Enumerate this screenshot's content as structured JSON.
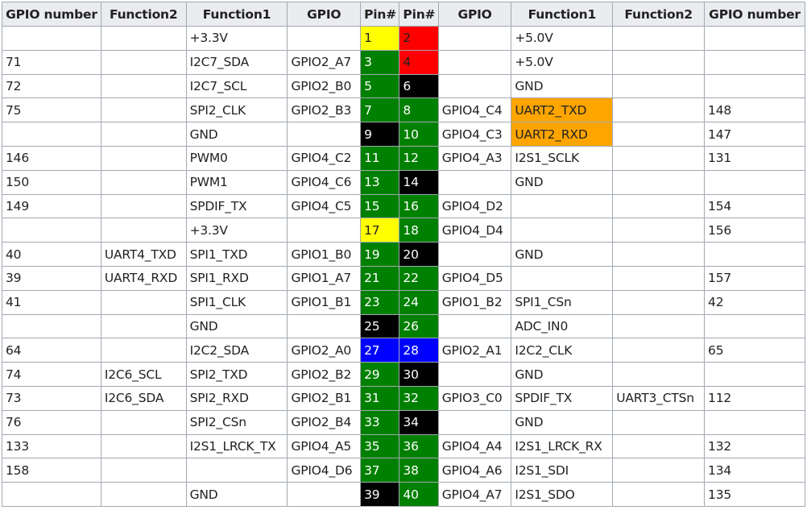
{
  "header": [
    "GPIO number",
    "Function2",
    "Function1",
    "GPIO",
    "Pin#",
    "Pin#",
    "GPIO",
    "Function1",
    "Function2",
    "GPIO number"
  ],
  "colors": {
    "power_3v3": "#ffff00",
    "power_5v": "#ff0000",
    "gnd": "#000000",
    "gpio": "#008000",
    "i2c_id": "#0000ff",
    "uart_highlight": "#ffa500"
  },
  "rows": [
    {
      "l_num": "",
      "l_f2": "",
      "l_f1": "+3.3V",
      "l_gpio": "",
      "l_pin": "1",
      "l_pin_color": "#ffff00",
      "r_pin": "2",
      "r_pin_color": "#ff0000",
      "r_gpio": "",
      "r_f1": "+5.0V",
      "r_f1_color": "",
      "r_f2": "",
      "r_num": ""
    },
    {
      "l_num": "71",
      "l_f2": "",
      "l_f1": "I2C7_SDA",
      "l_gpio": "GPIO2_A7",
      "l_pin": "3",
      "l_pin_color": "#008000",
      "r_pin": "4",
      "r_pin_color": "#ff0000",
      "r_gpio": "",
      "r_f1": "+5.0V",
      "r_f1_color": "",
      "r_f2": "",
      "r_num": ""
    },
    {
      "l_num": "72",
      "l_f2": "",
      "l_f1": "I2C7_SCL",
      "l_gpio": "GPIO2_B0",
      "l_pin": "5",
      "l_pin_color": "#008000",
      "r_pin": "6",
      "r_pin_color": "#000000",
      "r_gpio": "",
      "r_f1": "GND",
      "r_f1_color": "",
      "r_f2": "",
      "r_num": ""
    },
    {
      "l_num": "75",
      "l_f2": "",
      "l_f1": "SPI2_CLK",
      "l_gpio": "GPIO2_B3",
      "l_pin": "7",
      "l_pin_color": "#008000",
      "r_pin": "8",
      "r_pin_color": "#008000",
      "r_gpio": "GPIO4_C4",
      "r_f1": "UART2_TXD",
      "r_f1_color": "#ffa500",
      "r_f2": "",
      "r_num": "148"
    },
    {
      "l_num": "",
      "l_f2": "",
      "l_f1": "GND",
      "l_gpio": "",
      "l_pin": "9",
      "l_pin_color": "#000000",
      "r_pin": "10",
      "r_pin_color": "#008000",
      "r_gpio": "GPIO4_C3",
      "r_f1": "UART2_RXD",
      "r_f1_color": "#ffa500",
      "r_f2": "",
      "r_num": "147"
    },
    {
      "l_num": "146",
      "l_f2": "",
      "l_f1": "PWM0",
      "l_gpio": "GPIO4_C2",
      "l_pin": "11",
      "l_pin_color": "#008000",
      "r_pin": "12",
      "r_pin_color": "#008000",
      "r_gpio": "GPIO4_A3",
      "r_f1": "I2S1_SCLK",
      "r_f1_color": "",
      "r_f2": "",
      "r_num": "131"
    },
    {
      "l_num": "150",
      "l_f2": "",
      "l_f1": "PWM1",
      "l_gpio": "GPIO4_C6",
      "l_pin": "13",
      "l_pin_color": "#008000",
      "r_pin": "14",
      "r_pin_color": "#000000",
      "r_gpio": "",
      "r_f1": "GND",
      "r_f1_color": "",
      "r_f2": "",
      "r_num": ""
    },
    {
      "l_num": "149",
      "l_f2": "",
      "l_f1": "SPDIF_TX",
      "l_gpio": "GPIO4_C5",
      "l_pin": "15",
      "l_pin_color": "#008000",
      "r_pin": "16",
      "r_pin_color": "#008000",
      "r_gpio": "GPIO4_D2",
      "r_f1": "",
      "r_f1_color": "",
      "r_f2": "",
      "r_num": "154"
    },
    {
      "l_num": "",
      "l_f2": "",
      "l_f1": "+3.3V",
      "l_gpio": "",
      "l_pin": "17",
      "l_pin_color": "#ffff00",
      "r_pin": "18",
      "r_pin_color": "#008000",
      "r_gpio": "GPIO4_D4",
      "r_f1": "",
      "r_f1_color": "",
      "r_f2": "",
      "r_num": "156"
    },
    {
      "l_num": "40",
      "l_f2": "UART4_TXD",
      "l_f1": "SPI1_TXD",
      "l_gpio": "GPIO1_B0",
      "l_pin": "19",
      "l_pin_color": "#008000",
      "r_pin": "20",
      "r_pin_color": "#000000",
      "r_gpio": "",
      "r_f1": "GND",
      "r_f1_color": "",
      "r_f2": "",
      "r_num": ""
    },
    {
      "l_num": "39",
      "l_f2": "UART4_RXD",
      "l_f1": "SPI1_RXD",
      "l_gpio": "GPIO1_A7",
      "l_pin": "21",
      "l_pin_color": "#008000",
      "r_pin": "22",
      "r_pin_color": "#008000",
      "r_gpio": "GPIO4_D5",
      "r_f1": "",
      "r_f1_color": "",
      "r_f2": "",
      "r_num": "157"
    },
    {
      "l_num": "41",
      "l_f2": "",
      "l_f1": "SPI1_CLK",
      "l_gpio": "GPIO1_B1",
      "l_pin": "23",
      "l_pin_color": "#008000",
      "r_pin": "24",
      "r_pin_color": "#008000",
      "r_gpio": "GPIO1_B2",
      "r_f1": "SPI1_CSn",
      "r_f1_color": "",
      "r_f2": "",
      "r_num": "42"
    },
    {
      "l_num": "",
      "l_f2": "",
      "l_f1": "GND",
      "l_gpio": "",
      "l_pin": "25",
      "l_pin_color": "#000000",
      "r_pin": "26",
      "r_pin_color": "#008000",
      "r_gpio": "",
      "r_f1": "ADC_IN0",
      "r_f1_color": "",
      "r_f2": "",
      "r_num": ""
    },
    {
      "l_num": "64",
      "l_f2": "",
      "l_f1": "I2C2_SDA",
      "l_gpio": "GPIO2_A0",
      "l_pin": "27",
      "l_pin_color": "#0000ff",
      "r_pin": "28",
      "r_pin_color": "#0000ff",
      "r_gpio": "GPIO2_A1",
      "r_f1": "I2C2_CLK",
      "r_f1_color": "",
      "r_f2": "",
      "r_num": "65"
    },
    {
      "l_num": "74",
      "l_f2": "I2C6_SCL",
      "l_f1": "SPI2_TXD",
      "l_gpio": "GPIO2_B2",
      "l_pin": "29",
      "l_pin_color": "#008000",
      "r_pin": "30",
      "r_pin_color": "#000000",
      "r_gpio": "",
      "r_f1": "GND",
      "r_f1_color": "",
      "r_f2": "",
      "r_num": ""
    },
    {
      "l_num": "73",
      "l_f2": "I2C6_SDA",
      "l_f1": "SPI2_RXD",
      "l_gpio": "GPIO2_B1",
      "l_pin": "31",
      "l_pin_color": "#008000",
      "r_pin": "32",
      "r_pin_color": "#008000",
      "r_gpio": "GPIO3_C0",
      "r_f1": "SPDIF_TX",
      "r_f1_color": "",
      "r_f2": "UART3_CTSn",
      "r_num": "112"
    },
    {
      "l_num": "76",
      "l_f2": "",
      "l_f1": "SPI2_CSn",
      "l_gpio": "GPIO2_B4",
      "l_pin": "33",
      "l_pin_color": "#008000",
      "r_pin": "34",
      "r_pin_color": "#000000",
      "r_gpio": "",
      "r_f1": "GND",
      "r_f1_color": "",
      "r_f2": "",
      "r_num": ""
    },
    {
      "l_num": "133",
      "l_f2": "",
      "l_f1": "I2S1_LRCK_TX",
      "l_gpio": "GPIO4_A5",
      "l_pin": "35",
      "l_pin_color": "#008000",
      "r_pin": "36",
      "r_pin_color": "#008000",
      "r_gpio": "GPIO4_A4",
      "r_f1": "I2S1_LRCK_RX",
      "r_f1_color": "",
      "r_f2": "",
      "r_num": "132"
    },
    {
      "l_num": "158",
      "l_f2": "",
      "l_f1": "",
      "l_gpio": "GPIO4_D6",
      "l_pin": "37",
      "l_pin_color": "#008000",
      "r_pin": "38",
      "r_pin_color": "#008000",
      "r_gpio": "GPIO4_A6",
      "r_f1": "I2S1_SDI",
      "r_f1_color": "",
      "r_f2": "",
      "r_num": "134"
    },
    {
      "l_num": "",
      "l_f2": "",
      "l_f1": "GND",
      "l_gpio": "",
      "l_pin": "39",
      "l_pin_color": "#000000",
      "r_pin": "40",
      "r_pin_color": "#008000",
      "r_gpio": "GPIO4_A7",
      "r_f1": "I2S1_SDO",
      "r_f1_color": "",
      "r_f2": "",
      "r_num": "135"
    }
  ]
}
